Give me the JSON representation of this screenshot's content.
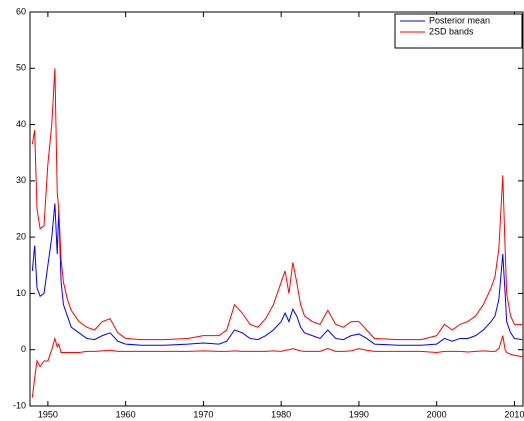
{
  "chart_data": {
    "type": "line",
    "legend": "upper right",
    "xlim": [
      1947.7,
      2011.1
    ],
    "xticks": [
      1950,
      1960,
      1970,
      1980,
      1990,
      2000,
      2010
    ],
    "ylim": [
      -10,
      60
    ],
    "yticks": [
      -10,
      0,
      10,
      20,
      30,
      40,
      50,
      60
    ],
    "x": [
      1948,
      1948.3,
      1948.6,
      1949,
      1949.5,
      1950,
      1950.5,
      1950.9,
      1951.2,
      1951.4,
      1951.7,
      1952,
      1952.5,
      1953,
      1954,
      1955,
      1956,
      1957,
      1958,
      1959,
      1960,
      1962,
      1965,
      1968,
      1970,
      1972,
      1973,
      1974,
      1975,
      1976,
      1977,
      1978,
      1979,
      1980,
      1980.5,
      1981,
      1981.5,
      1982,
      1982.5,
      1983,
      1984,
      1985,
      1986,
      1987,
      1988,
      1989,
      1990,
      1991,
      1992,
      1995,
      1998,
      2000,
      2001,
      2002,
      2003,
      2004,
      2005,
      2006,
      2007,
      2007.5,
      2008,
      2008.5,
      2008.8,
      2009,
      2009.5,
      2010,
      2011
    ],
    "series": [
      {
        "name": "Posterior mean",
        "color": "#0000ff",
        "values": [
          14,
          18.5,
          11,
          9.5,
          10,
          15,
          20,
          26,
          17,
          25,
          12,
          8,
          6,
          4,
          3,
          2,
          1.8,
          2.5,
          3,
          1.5,
          1,
          0.8,
          0.8,
          1,
          1.2,
          1,
          1.5,
          3.5,
          3,
          2,
          1.8,
          2.5,
          3.5,
          5,
          6.5,
          5,
          7.2,
          6,
          4,
          3,
          2.5,
          2,
          3.5,
          2,
          1.8,
          2.5,
          2.8,
          2,
          1,
          0.8,
          0.8,
          1,
          2,
          1.5,
          2,
          2,
          2.5,
          3.5,
          5,
          6,
          9,
          17,
          10,
          5,
          3,
          2,
          1.8
        ]
      },
      {
        "name": "2SD bands",
        "color": "#ff0000",
        "upper": [
          36.5,
          39,
          25,
          21.5,
          22,
          33,
          40,
          50,
          28,
          25,
          16,
          12,
          9,
          7,
          5,
          4,
          3.5,
          5,
          5.5,
          3,
          2,
          1.8,
          1.8,
          2,
          2.5,
          2.5,
          3.5,
          8,
          6.5,
          4.5,
          4,
          5.5,
          8,
          12,
          14,
          10,
          15.5,
          12,
          8,
          6,
          5,
          4.5,
          7,
          4.5,
          4,
          5,
          5,
          3.5,
          2,
          1.8,
          1.8,
          2.5,
          4.5,
          3.5,
          4.5,
          5,
          6,
          8,
          11,
          13,
          18,
          31,
          18,
          10,
          6,
          4.5,
          4.5
        ],
        "lower": [
          -8.5,
          -5,
          -2,
          -3,
          -2,
          -2,
          0,
          2,
          0.5,
          1,
          -0.5,
          -0.5,
          -0.5,
          -0.5,
          -0.5,
          -0.3,
          -0.3,
          -0.2,
          -0.1,
          -0.3,
          -0.3,
          -0.3,
          -0.3,
          -0.3,
          -0.2,
          -0.3,
          -0.3,
          -0.2,
          -0.3,
          -0.3,
          -0.3,
          -0.3,
          -0.2,
          -0.3,
          -0.1,
          0,
          0.2,
          0,
          -0.2,
          -0.3,
          -0.3,
          -0.3,
          0.2,
          -0.3,
          -0.3,
          -0.2,
          0.2,
          -0.1,
          -0.3,
          -0.3,
          -0.3,
          -0.5,
          -0.3,
          -0.3,
          -0.3,
          -0.4,
          -0.3,
          -0.2,
          -0.3,
          -0.3,
          0.2,
          2.5,
          0,
          -0.5,
          -0.8,
          -1,
          -1.2
        ]
      }
    ]
  }
}
